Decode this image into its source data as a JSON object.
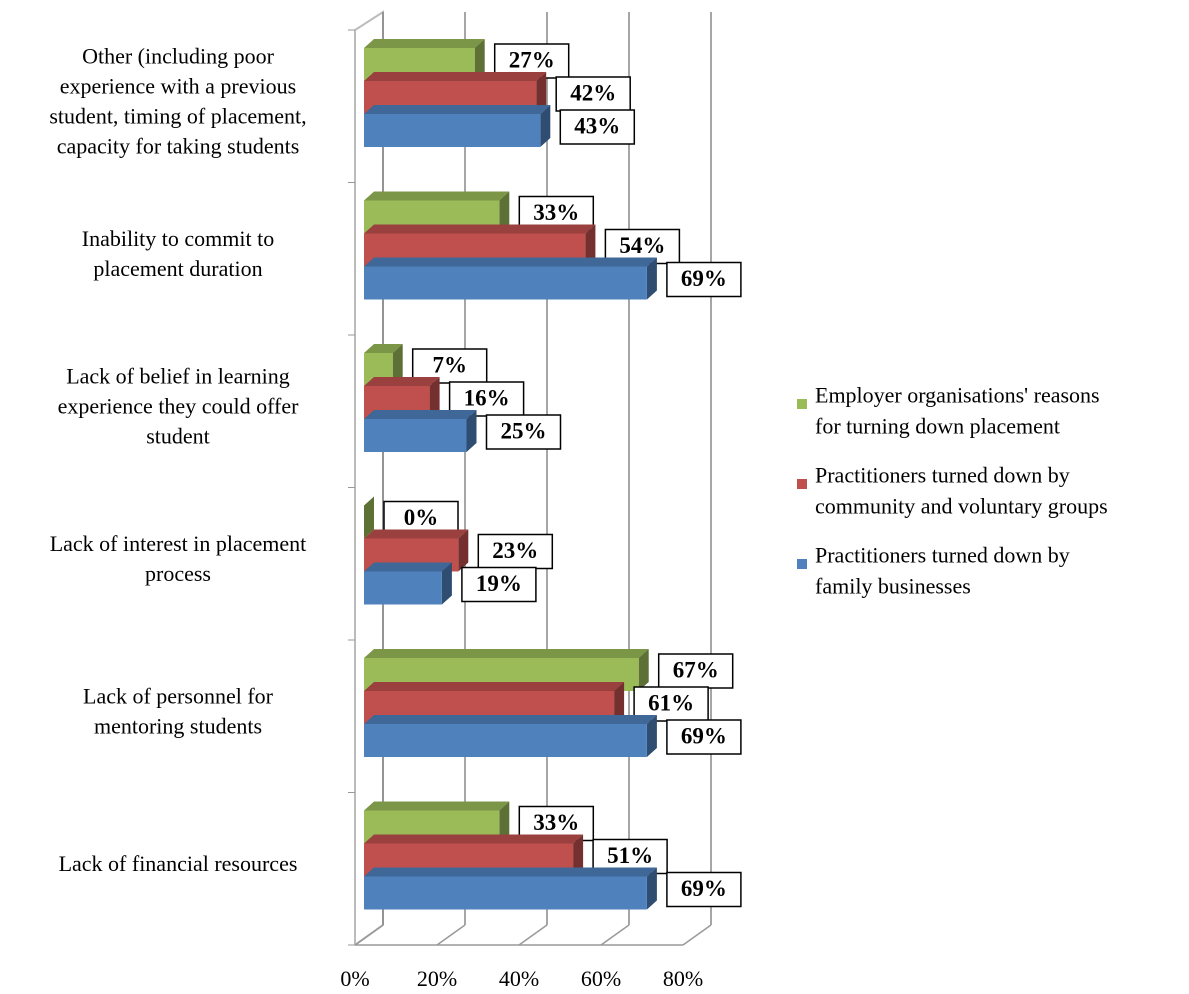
{
  "chart_data": {
    "type": "bar",
    "orientation": "horizontal",
    "three_d": true,
    "categories": [
      "Other (including poor\nexperience with a previous\nstudent, timing of placement,\ncapacity for taking students",
      "Inability to commit to\nplacement duration",
      "Lack of belief in learning\nexperience they could offer\nstudent",
      "Lack of interest in placement\nprocess",
      "Lack of personnel for\nmentoring students",
      "Lack of financial resources"
    ],
    "series": [
      {
        "name": "Employer organisations' reasons\nfor turning down placement",
        "color": "#9bbb59",
        "values": [
          27,
          33,
          7,
          0,
          67,
          33
        ],
        "value_labels": [
          "27%",
          "33%",
          "7%",
          "0%",
          "67%",
          "33%"
        ]
      },
      {
        "name": "Practitioners turned down by\ncommunity and voluntary groups",
        "color": "#c0504d",
        "values": [
          42,
          54,
          16,
          23,
          61,
          51
        ],
        "value_labels": [
          "42%",
          "54%",
          "16%",
          "23%",
          "61%",
          "51%"
        ]
      },
      {
        "name": "Practitioners turned down by\nfamily businesses",
        "color": "#4f81bd",
        "values": [
          43,
          69,
          25,
          19,
          69,
          69
        ],
        "value_labels": [
          "43%",
          "69%",
          "25%",
          "19%",
          "69%",
          "69%"
        ]
      }
    ],
    "xlim": [
      0,
      80
    ],
    "xticks": [
      {
        "value": 0,
        "label": "0%"
      },
      {
        "value": 20,
        "label": "20%"
      },
      {
        "value": 40,
        "label": "40%"
      },
      {
        "value": 60,
        "label": "60%"
      },
      {
        "value": 80,
        "label": "80%"
      }
    ],
    "grid": true,
    "legend": "right"
  }
}
